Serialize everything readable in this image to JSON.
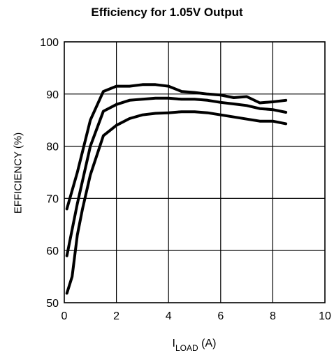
{
  "chart_data": {
    "type": "line",
    "title": "Efficiency for 1.05V Output",
    "ylabel": "EFFICIENCY (%)",
    "xlabel": {
      "main": "I",
      "subscript": "LOAD",
      "unit": "(A)"
    },
    "xlim": [
      0,
      10
    ],
    "ylim": [
      50,
      100
    ],
    "xticks": [
      0,
      2,
      4,
      6,
      8,
      10
    ],
    "yticks": [
      50,
      60,
      70,
      80,
      90,
      100
    ],
    "grid": true,
    "line_color": "#000000",
    "series": [
      {
        "x": [
          0.1,
          0.5,
          1.0,
          1.5,
          2.0,
          2.5,
          3.0,
          3.5,
          4.0,
          4.5,
          5.0,
          5.5,
          6.0,
          6.5,
          7.0,
          7.5,
          8.0,
          8.5
        ],
        "y": [
          68.0,
          75.0,
          85.0,
          90.5,
          91.5,
          91.5,
          91.8,
          91.8,
          91.5,
          90.5,
          90.3,
          90.0,
          89.8,
          89.3,
          89.5,
          88.3,
          88.5,
          88.8
        ]
      },
      {
        "x": [
          0.1,
          0.5,
          1.0,
          1.5,
          2.0,
          2.5,
          3.0,
          3.5,
          4.0,
          4.5,
          5.0,
          5.5,
          6.0,
          6.5,
          7.0,
          7.5,
          8.0,
          8.5
        ],
        "y": [
          59.0,
          69.0,
          80.0,
          86.7,
          88.0,
          88.8,
          89.0,
          89.2,
          89.2,
          89.0,
          89.0,
          88.8,
          88.4,
          88.1,
          87.8,
          87.2,
          87.0,
          86.5
        ]
      },
      {
        "x": [
          0.1,
          0.3,
          0.5,
          0.7,
          1.0,
          1.5,
          2.0,
          2.5,
          3.0,
          3.5,
          4.0,
          4.5,
          5.0,
          5.5,
          6.0,
          6.5,
          7.0,
          7.5,
          8.0,
          8.5
        ],
        "y": [
          51.8,
          55.0,
          63.0,
          68.0,
          74.5,
          82.0,
          84.0,
          85.3,
          86.0,
          86.3,
          86.4,
          86.6,
          86.6,
          86.4,
          86.0,
          85.6,
          85.2,
          84.8,
          84.8,
          84.3
        ]
      }
    ]
  }
}
